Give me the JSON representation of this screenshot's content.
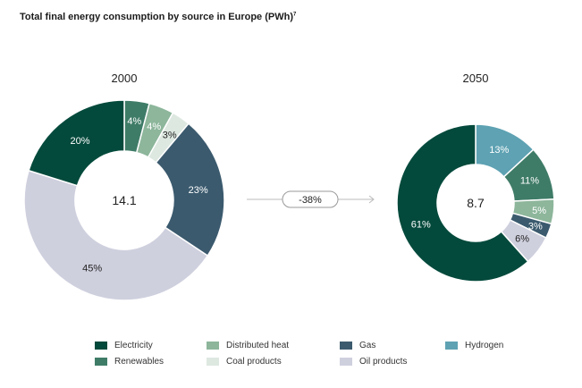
{
  "title": "Total final energy consumption by source in Europe (PWh)",
  "title_footnote": "7",
  "colors": {
    "Electricity": "#044a3c",
    "Renewables": "#3f7c68",
    "Distributed heat": "#8db69b",
    "Coal products": "#dde8e1",
    "Gas": "#3b5a6e",
    "Oil products": "#cfd0de",
    "Hydrogen": "#5ea2b3"
  },
  "chart_data": [
    {
      "type": "pie",
      "title": "2000",
      "center_label": "14.1",
      "slices": [
        {
          "name": "Renewables",
          "value": 4,
          "label": "4%"
        },
        {
          "name": "Distributed heat",
          "value": 4,
          "label": "4%"
        },
        {
          "name": "Coal products",
          "value": 3,
          "label": "3%"
        },
        {
          "name": "Gas",
          "value": 23,
          "label": "23%"
        },
        {
          "name": "Oil products",
          "value": 45,
          "label": "45%"
        },
        {
          "name": "Electricity",
          "value": 20,
          "label": "20%"
        }
      ]
    },
    {
      "type": "pie",
      "title": "2050",
      "center_label": "8.7",
      "slices": [
        {
          "name": "Hydrogen",
          "value": 13,
          "label": "13%"
        },
        {
          "name": "Renewables",
          "value": 11,
          "label": "11%"
        },
        {
          "name": "Distributed heat",
          "value": 5,
          "label": "5%"
        },
        {
          "name": "Gas",
          "value": 3,
          "label": "3%"
        },
        {
          "name": "Oil products",
          "value": 6,
          "label": "6%"
        },
        {
          "name": "Electricity",
          "value": 61,
          "label": "61%"
        }
      ]
    }
  ],
  "change_label": "-38%",
  "legend": [
    "Electricity",
    "Renewables",
    "Distributed heat",
    "Coal products",
    "Gas",
    "Oil products",
    "Hydrogen"
  ]
}
